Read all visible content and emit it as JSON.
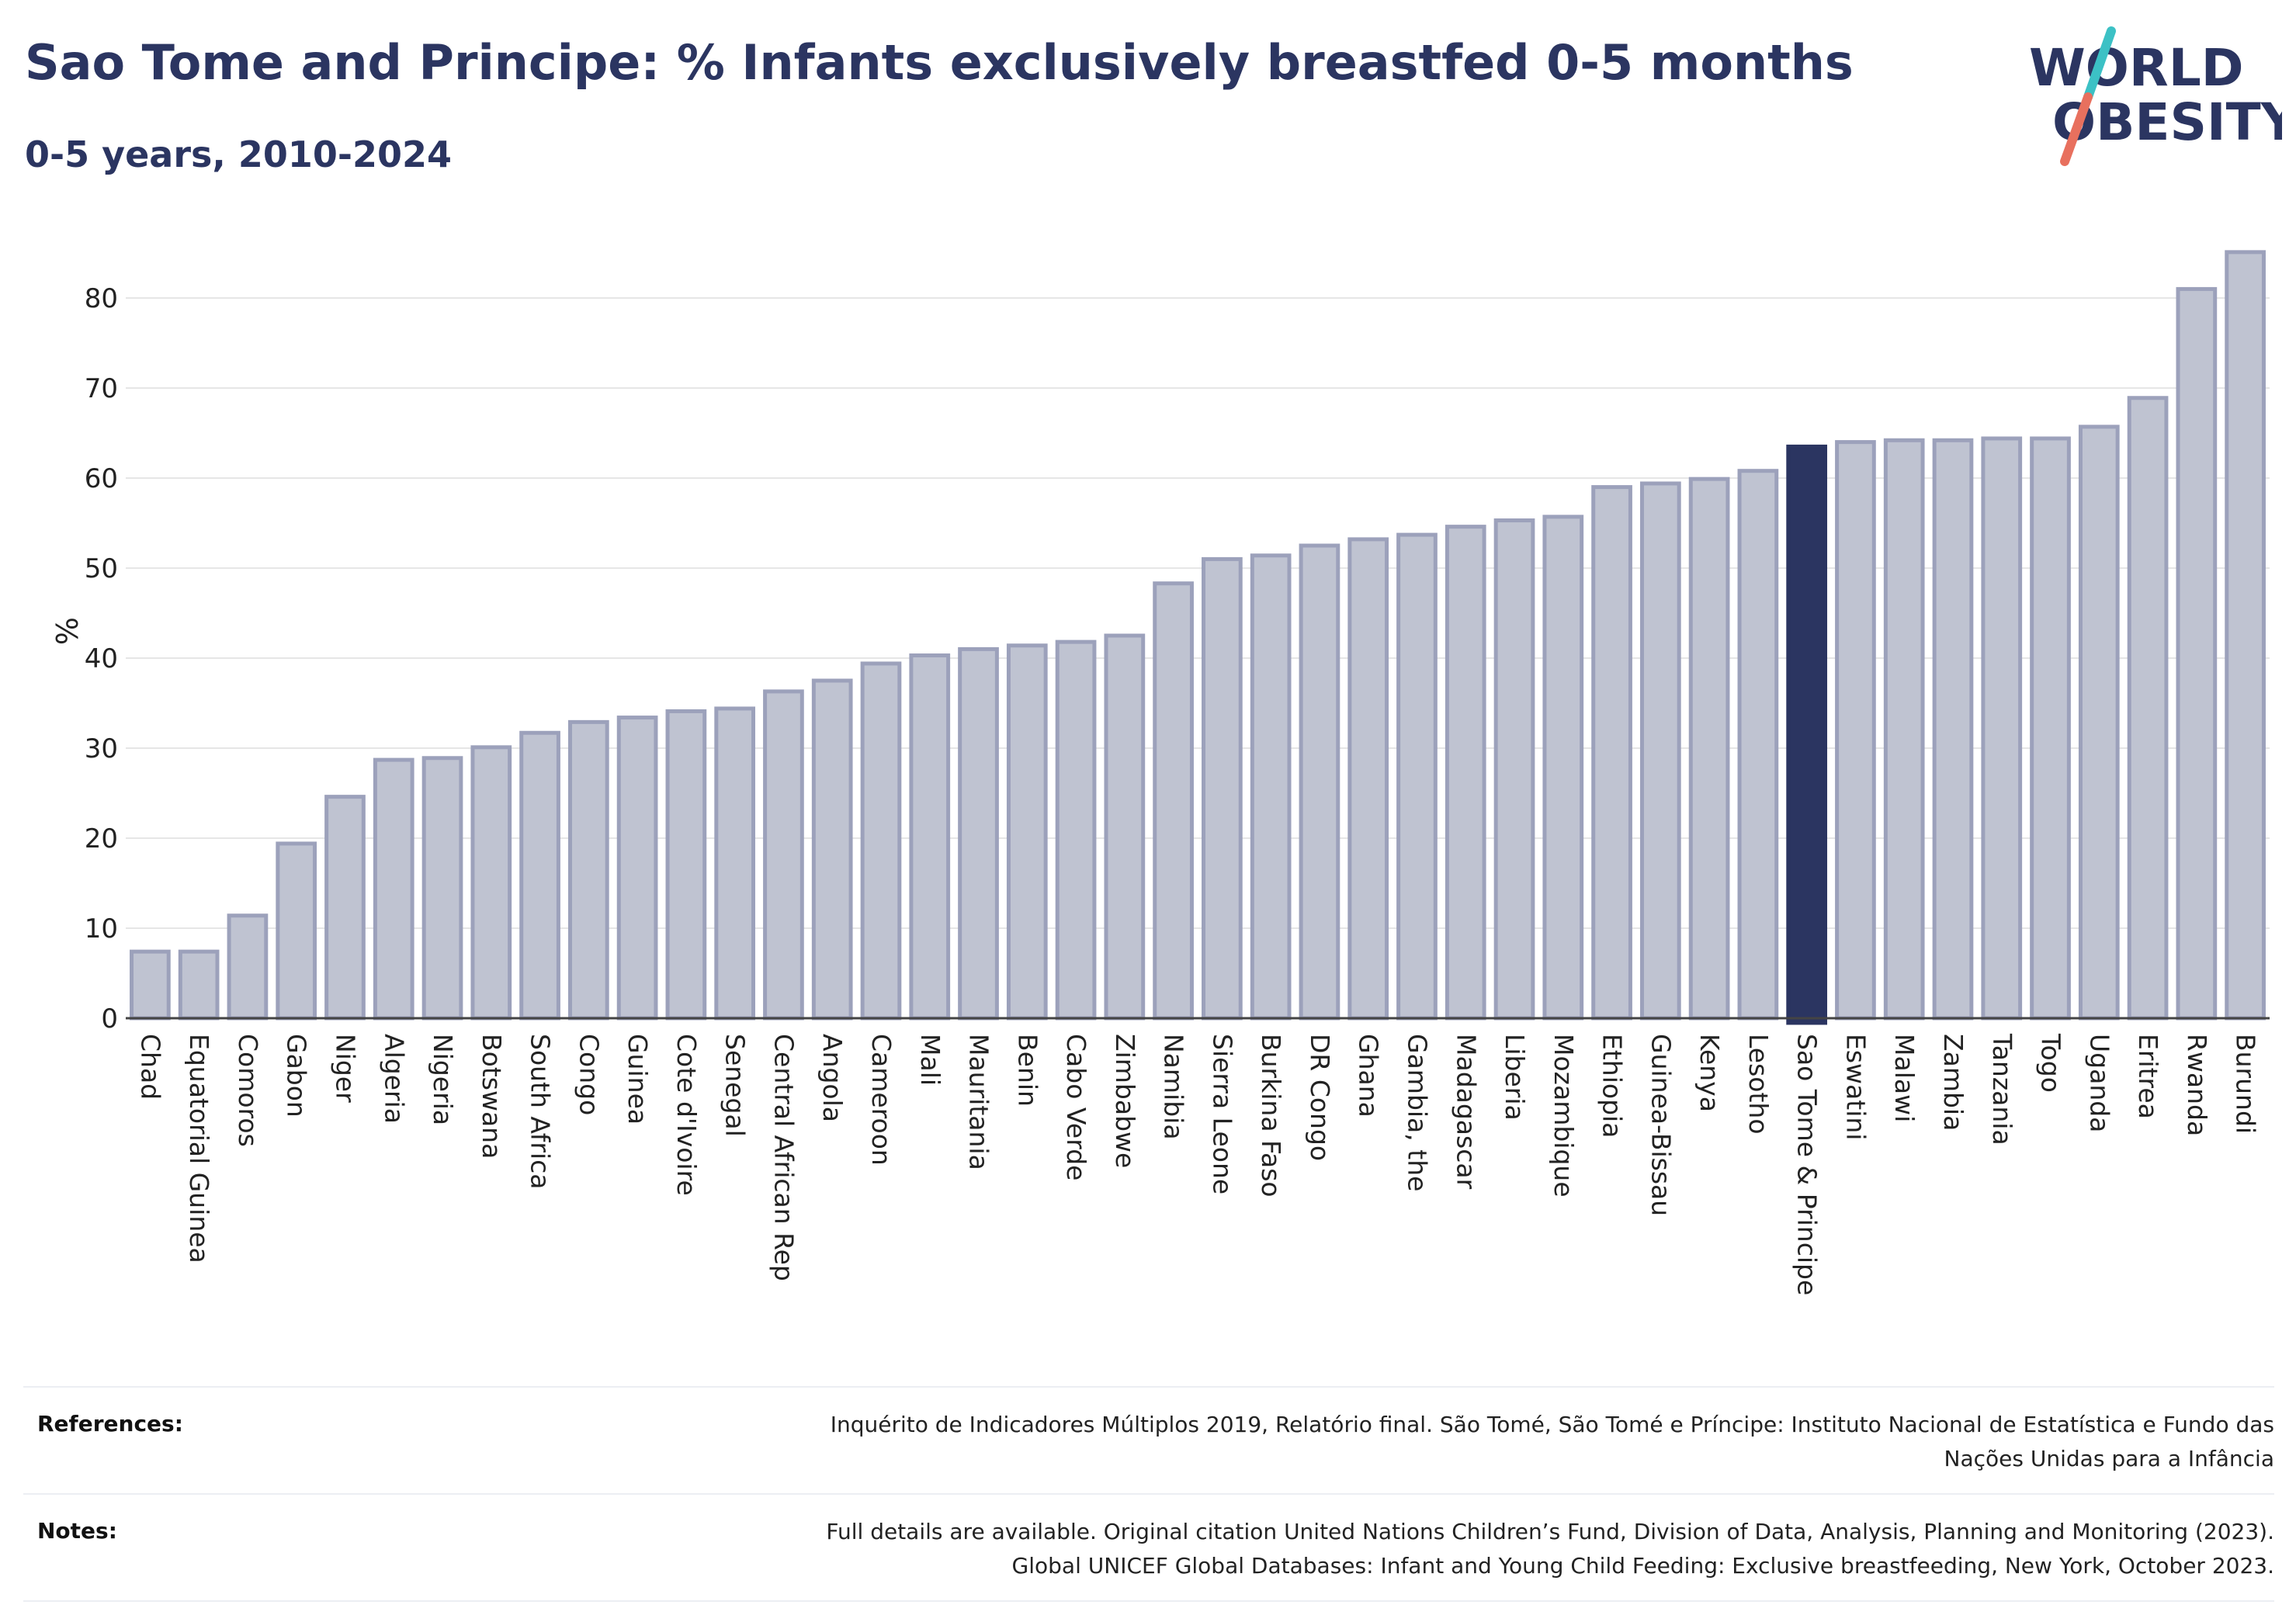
{
  "header": {
    "title": "Sao Tome and Principe: % Infants exclusively breastfed 0-5 months",
    "subtitle": "0-5 years, 2010-2024"
  },
  "logo": {
    "line1": "WORLD",
    "line2": "OBESITY",
    "colors": {
      "text": "#2b3561",
      "slash_top": "#3cc1c5",
      "slash_bottom": "#e8705e"
    }
  },
  "colors": {
    "bar_fill": "#bfc3d1",
    "bar_stroke": "#9ca1bb",
    "highlight": "#2b3561",
    "grid": "#e6e6e6"
  },
  "chart_data": {
    "type": "bar",
    "ylabel": "%",
    "xlabel": "",
    "ylim": [
      0,
      86
    ],
    "yticks": [
      0,
      10,
      20,
      30,
      40,
      50,
      60,
      70,
      80
    ],
    "grid": true,
    "highlight_category": "Sao Tome & Principe",
    "categories": [
      "Chad",
      "Equatorial Guinea",
      "Comoros",
      "Gabon",
      "Niger",
      "Algeria",
      "Nigeria",
      "Botswana",
      "South Africa",
      "Congo",
      "Guinea",
      "Cote d'Ivoire",
      "Senegal",
      "Central African Rep",
      "Angola",
      "Cameroon",
      "Mali",
      "Mauritania",
      "Benin",
      "Cabo Verde",
      "Zimbabwe",
      "Namibia",
      "Sierra Leone",
      "Burkina Faso",
      "DR Congo",
      "Ghana",
      "Gambia, the",
      "Madagascar",
      "Liberia",
      "Mozambique",
      "Ethiopia",
      "Guinea-Bissau",
      "Kenya",
      "Lesotho",
      "Sao Tome & Principe",
      "Eswatini",
      "Malawi",
      "Zambia",
      "Tanzania",
      "Togo",
      "Uganda",
      "Eritrea",
      "Rwanda",
      "Burundi"
    ],
    "values": [
      7.4,
      7.4,
      11.4,
      19.4,
      24.6,
      28.7,
      28.9,
      30.1,
      31.7,
      32.9,
      33.4,
      34.1,
      34.4,
      36.3,
      37.5,
      39.4,
      40.3,
      41.0,
      41.4,
      41.8,
      42.5,
      48.3,
      51.0,
      51.4,
      52.5,
      53.2,
      53.7,
      54.6,
      55.3,
      55.7,
      59.0,
      59.4,
      59.9,
      60.8,
      63.5,
      64.0,
      64.2,
      64.2,
      64.4,
      64.4,
      65.7,
      68.9,
      81.0,
      85.1
    ]
  },
  "footer": {
    "references_label": "References:",
    "references_line1": "Inquérito de Indicadores Múltiplos 2019, Relatório final. São Tomé, São Tomé e Príncipe: Instituto Nacional de Estatística e Fundo das",
    "references_line2": "Nações Unidas para a Infância",
    "notes_label": "Notes:",
    "notes_line1": "Full details are available. Original citation United Nations Children’s Fund, Division of Data, Analysis, Planning and Monitoring (2023).",
    "notes_line2": "Global UNICEF Global Databases: Infant and Young Child Feeding: Exclusive breastfeeding, New York, October 2023."
  }
}
